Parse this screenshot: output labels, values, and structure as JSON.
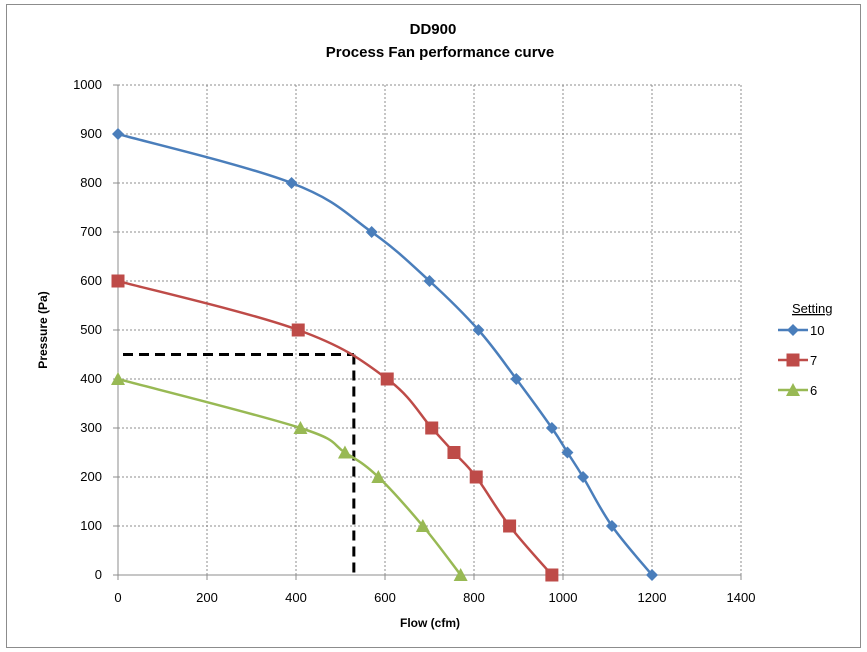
{
  "chart_data": {
    "type": "line",
    "title": "DD900",
    "subtitle": "Process Fan performance curve",
    "xlabel": "Flow (cfm)",
    "ylabel": "Pressure (Pa)",
    "xlim": [
      0,
      1400
    ],
    "ylim": [
      0,
      1000
    ],
    "x_ticks": [
      0,
      200,
      400,
      600,
      800,
      1000,
      1200,
      1400
    ],
    "y_ticks": [
      0,
      100,
      200,
      300,
      400,
      500,
      600,
      700,
      800,
      900,
      1000
    ],
    "grid": true,
    "legend_title": "Setting",
    "legend_position": "right",
    "series": [
      {
        "name": "10",
        "color": "#4a7ebb",
        "marker": "diamond",
        "x": [
          0,
          390,
          570,
          700,
          810,
          895,
          975,
          1010,
          1045,
          1110,
          1200
        ],
        "y": [
          900,
          800,
          700,
          600,
          500,
          400,
          300,
          250,
          200,
          100,
          0
        ]
      },
      {
        "name": "7",
        "color": "#be4b48",
        "marker": "square",
        "x": [
          0,
          405,
          605,
          705,
          755,
          805,
          880,
          975
        ],
        "y": [
          600,
          500,
          400,
          300,
          250,
          200,
          100,
          0
        ]
      },
      {
        "name": "6",
        "color": "#98b954",
        "marker": "triangle",
        "x": [
          0,
          410,
          510,
          585,
          685,
          770
        ],
        "y": [
          400,
          300,
          250,
          200,
          100,
          0
        ]
      }
    ],
    "reference_lines": {
      "color": "#000000",
      "style": "dashed",
      "operating_point": {
        "x": 530,
        "y": 450
      }
    }
  }
}
